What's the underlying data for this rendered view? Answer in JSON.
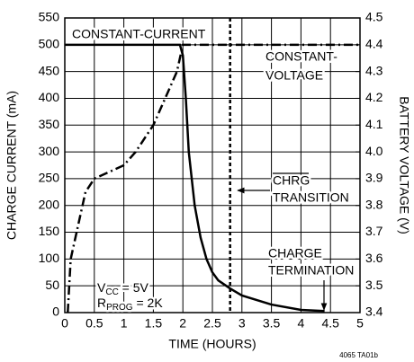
{
  "chart_data": {
    "type": "line",
    "xlabel": "TIME (HOURS)",
    "ylabel": "CHARGE CURRENT (mA)",
    "y2label": "BATTERY VOLTAGE (V)",
    "xlim": [
      0,
      5
    ],
    "xticks": [
      0,
      0.5,
      1,
      1.5,
      2,
      2.5,
      3,
      3.5,
      4,
      4.5,
      5
    ],
    "ylim": [
      0,
      550
    ],
    "yticks": [
      0,
      50,
      100,
      150,
      200,
      250,
      300,
      350,
      400,
      450,
      500,
      550
    ],
    "y2lim": [
      3.4,
      4.5
    ],
    "y2ticks": [
      3.4,
      3.5,
      3.6,
      3.7,
      3.8,
      3.9,
      {
        "value": 4,
        "label": "4.0"
      },
      4.1,
      4.2,
      4.3,
      4.4,
      4.5
    ],
    "grid": true,
    "series": [
      {
        "name": "CHARGE CURRENT",
        "color": "#000000",
        "x": [
          0,
          1.95,
          2.0,
          2.05,
          2.1,
          2.2,
          2.3,
          2.4,
          2.5,
          2.6,
          2.8,
          3.0,
          3.5,
          4.0,
          4.4
        ],
        "values": [
          500,
          500,
          480,
          400,
          300,
          200,
          140,
          100,
          75,
          60,
          45,
          32,
          15,
          5,
          3
        ]
      },
      {
        "name": "BATTERY VOLTAGE",
        "color": "#000000",
        "axis": "y2",
        "x": [
          0.05,
          0.1,
          0.2,
          0.35,
          0.5,
          0.8,
          1.0,
          1.2,
          1.5,
          1.7,
          1.9,
          2.0,
          5
        ],
        "values": [
          3.4,
          3.6,
          3.7,
          3.85,
          3.9,
          3.93,
          3.95,
          4.0,
          4.1,
          4.2,
          4.3,
          4.4,
          4.4
        ]
      }
    ],
    "marker_x": 2.8,
    "annotations": {
      "constant_current": "CONSTANT-CURRENT",
      "constant_voltage": [
        "CONSTANT-",
        "VOLTAGE"
      ],
      "chrg_transition": [
        "CHRG",
        "TRANSITION"
      ],
      "charge_termination": [
        "CHARGE",
        "TERMINATION"
      ],
      "vcc": {
        "main": "V",
        "sub": "CC",
        "rest": " = 5V"
      },
      "rprog": {
        "main": "R",
        "sub": "PROG",
        "rest": " = 2K"
      },
      "figure_id": "4065 TA01b"
    }
  }
}
